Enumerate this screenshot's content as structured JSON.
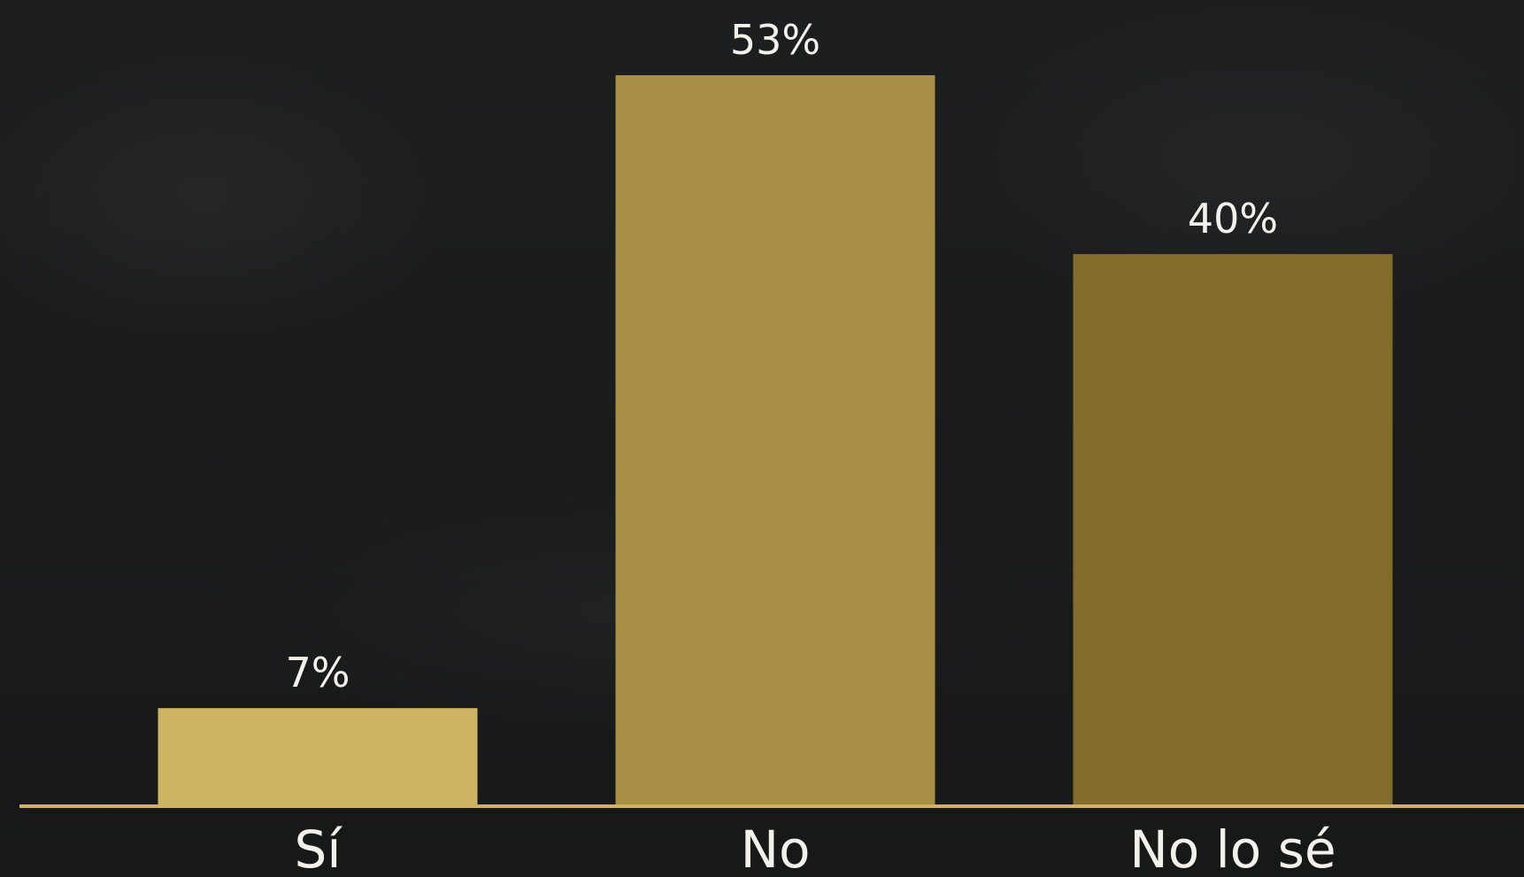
{
  "chart_data": {
    "type": "bar",
    "categories": [
      "Sí",
      "No",
      "No lo sé"
    ],
    "values": [
      7,
      53,
      40
    ],
    "value_labels": [
      "7%",
      "53%",
      "40%"
    ],
    "unit": "%",
    "title": "",
    "xlabel": "",
    "ylabel": "",
    "ylim": [
      0,
      53
    ],
    "grid": false,
    "legend": "none",
    "colors": {
      "bars": [
        "#ceb462",
        "#a88f45",
        "#826b2b"
      ],
      "axis": "#ceb462",
      "text": "#f3f1ea",
      "background": "#1b1c1d"
    }
  }
}
